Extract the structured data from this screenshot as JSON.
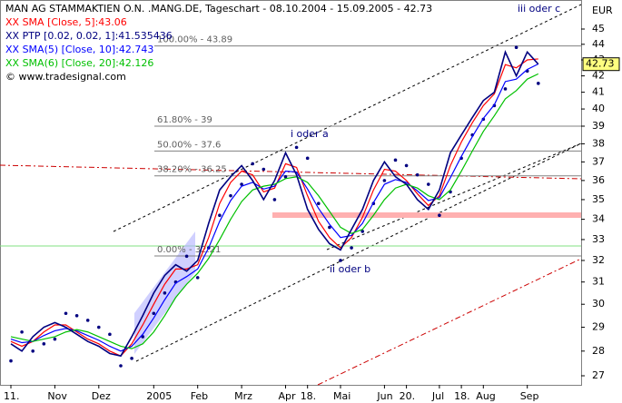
{
  "chart_data": {
    "type": "line",
    "title": "MAN AG STAMMAKTIEN O.N. .MANG.DE, Tageschart - 08.10.2004 - 15.09.2005 - 42.73",
    "copyright": "© www.tradesignal.com",
    "y_label": "EUR",
    "log_scale": true,
    "ylim": [
      27,
      45
    ],
    "yticks": [
      27,
      28,
      29,
      30,
      31,
      32,
      33,
      34,
      35,
      36,
      37,
      38,
      39,
      40,
      41,
      42,
      43,
      44,
      45
    ],
    "last_value": 42.73,
    "categories": [
      "11.",
      null,
      null,
      null,
      "Nov",
      null,
      null,
      null,
      "Dez",
      null,
      null,
      null,
      null,
      "2005",
      null,
      null,
      null,
      "Feb",
      null,
      null,
      null,
      "Mrz",
      null,
      null,
      null,
      "Apr",
      null,
      "18.",
      null,
      null,
      "Mai",
      null,
      null,
      null,
      "Jun",
      null,
      "20.",
      null,
      null,
      "Jul",
      null,
      "18.",
      null,
      "Aug",
      null,
      null,
      null,
      "Sep",
      null
    ],
    "price": {
      "color": "#000080",
      "values": [
        28.3,
        28.0,
        28.6,
        29.0,
        29.2,
        29.0,
        28.7,
        28.4,
        28.2,
        27.9,
        27.8,
        28.6,
        29.5,
        30.5,
        31.3,
        31.8,
        31.5,
        32.0,
        33.8,
        35.5,
        36.2,
        36.8,
        36.0,
        35.0,
        36.0,
        37.5,
        36.3,
        34.5,
        33.5,
        32.8,
        32.5,
        33.5,
        34.5,
        36.0,
        37.0,
        36.2,
        35.8,
        35.0,
        34.5,
        35.5,
        37.5,
        38.5,
        39.5,
        40.5,
        41.0,
        43.5,
        42.0,
        43.5,
        42.73
      ]
    },
    "series": [
      {
        "name": "XX SMA [Close, 5]:43.06",
        "color": "#ff0000",
        "style": "line",
        "values": [
          28.4,
          28.2,
          28.4,
          28.8,
          29.1,
          29.1,
          28.8,
          28.5,
          28.3,
          28.0,
          27.8,
          28.3,
          29.1,
          30.0,
          30.9,
          31.6,
          31.6,
          31.8,
          33.1,
          34.8,
          35.9,
          36.5,
          36.3,
          35.4,
          35.6,
          36.9,
          36.7,
          35.2,
          33.9,
          33.1,
          32.6,
          33.1,
          34.1,
          35.5,
          36.6,
          36.5,
          36.0,
          35.3,
          34.7,
          35.2,
          36.8,
          38.1,
          39.2,
          40.2,
          40.9,
          42.7,
          42.5,
          43.0,
          43.06
        ]
      },
      {
        "name": "XX PTP [0.02, 0.02, 1]:41.535436",
        "color": "#000080",
        "style": "dots",
        "values": [
          27.6,
          28.8,
          28.0,
          28.3,
          28.5,
          29.6,
          29.5,
          29.3,
          29.0,
          28.7,
          27.4,
          27.7,
          28.6,
          29.6,
          30.5,
          31.0,
          32.2,
          31.2,
          32.6,
          34.2,
          35.2,
          35.8,
          36.9,
          36.6,
          35.0,
          36.2,
          37.8,
          37.2,
          34.8,
          33.6,
          32.0,
          32.6,
          33.4,
          34.8,
          36.0,
          37.1,
          36.8,
          36.3,
          35.8,
          34.2,
          35.4,
          37.2,
          38.5,
          39.4,
          40.2,
          41.2,
          43.8,
          42.3,
          41.54
        ]
      },
      {
        "name": "XX SMA(5) [Close, 10]:42.743",
        "color": "#0000ff",
        "style": "line",
        "values": [
          28.5,
          28.35,
          28.4,
          28.65,
          28.85,
          28.95,
          28.85,
          28.65,
          28.45,
          28.2,
          28.0,
          28.2,
          28.7,
          29.4,
          30.2,
          30.95,
          31.25,
          31.6,
          32.6,
          33.9,
          34.95,
          35.7,
          35.9,
          35.55,
          35.7,
          36.5,
          36.45,
          35.55,
          34.55,
          33.75,
          33.1,
          33.2,
          33.8,
          34.85,
          35.8,
          36.05,
          35.9,
          35.45,
          34.95,
          35.1,
          36.15,
          37.3,
          38.4,
          39.45,
          40.25,
          41.65,
          41.8,
          42.4,
          42.743
        ]
      },
      {
        "name": "XX SMA(6) [Close, 20]:42.126",
        "color": "#00c000",
        "style": "line",
        "values": [
          28.6,
          28.5,
          28.4,
          28.5,
          28.6,
          28.8,
          28.9,
          28.8,
          28.6,
          28.4,
          28.2,
          28.1,
          28.3,
          28.8,
          29.5,
          30.3,
          30.9,
          31.4,
          32.1,
          33.0,
          34.0,
          34.9,
          35.5,
          35.7,
          35.8,
          36.1,
          36.2,
          35.9,
          35.2,
          34.4,
          33.6,
          33.3,
          33.5,
          34.2,
          35.0,
          35.6,
          35.8,
          35.6,
          35.2,
          35.0,
          35.5,
          36.5,
          37.6,
          38.7,
          39.6,
          40.6,
          41.1,
          41.8,
          42.126
        ]
      }
    ],
    "levels": [
      {
        "value": 43.89,
        "label": "100.00% - 43.89"
      },
      {
        "value": 39,
        "label": "61.80% - 39"
      },
      {
        "value": 37.6,
        "label": "50.00% - 37.6"
      },
      {
        "value": 36.25,
        "label": "38.20% - 36.25"
      },
      {
        "value": 32.21,
        "label": "0.00% - 32.21"
      }
    ],
    "annotations": [
      "i oder a",
      "ii oder b",
      "iii oder c"
    ]
  }
}
